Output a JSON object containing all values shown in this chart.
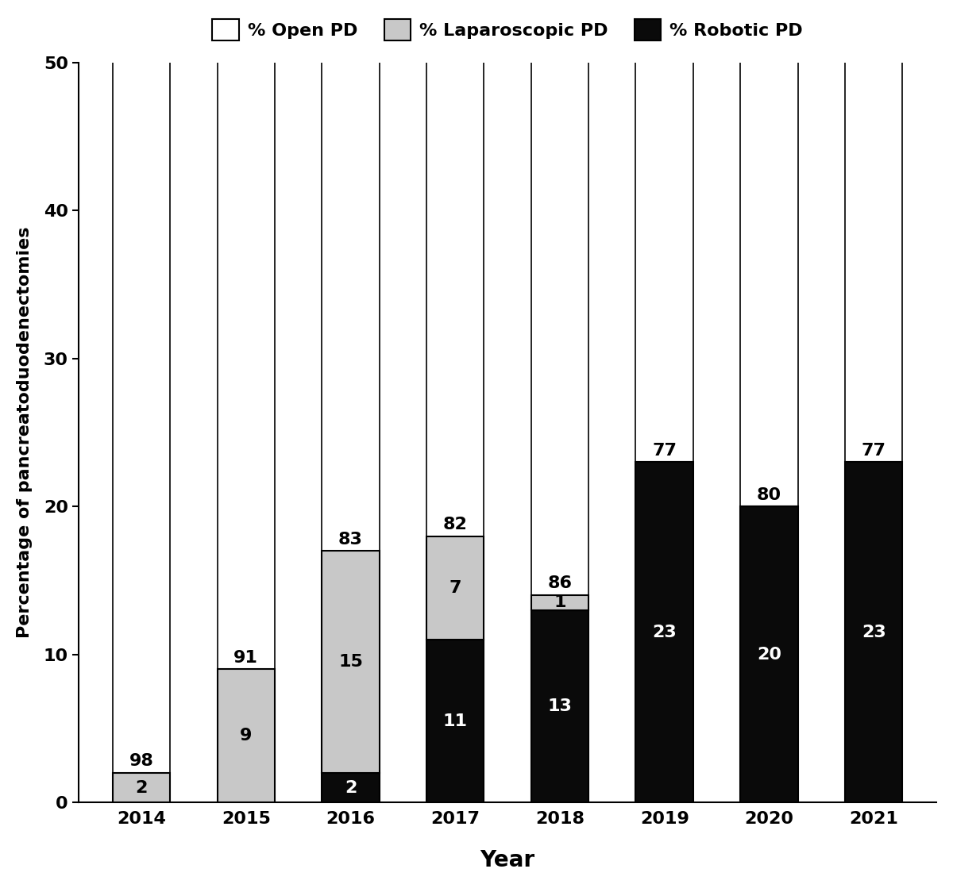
{
  "years": [
    "2014",
    "2015",
    "2016",
    "2017",
    "2018",
    "2019",
    "2020",
    "2021"
  ],
  "open_pct": [
    98,
    91,
    83,
    82,
    86,
    77,
    80,
    77
  ],
  "lap_pct": [
    2,
    9,
    15,
    7,
    1,
    0,
    0,
    0
  ],
  "rob_pct": [
    0,
    0,
    2,
    11,
    13,
    23,
    20,
    23
  ],
  "open_color": "#ffffff",
  "lap_color": "#c8c8c8",
  "rob_color": "#0a0a0a",
  "edge_color": "#000000",
  "ylabel": "Percentage of pancreatoduodenectomies",
  "xlabel": "Year",
  "ylim": [
    0,
    50
  ],
  "yticks": [
    0,
    10,
    20,
    30,
    40,
    50
  ],
  "legend_open": "% Open PD",
  "legend_lap": "% Laparoscopic PD",
  "legend_rob": "% Robotic PD",
  "bar_width": 0.55,
  "label_fontsize": 16,
  "xlabel_fontsize": 20,
  "tick_fontsize": 16,
  "legend_fontsize": 16,
  "annot_fontsize": 16
}
